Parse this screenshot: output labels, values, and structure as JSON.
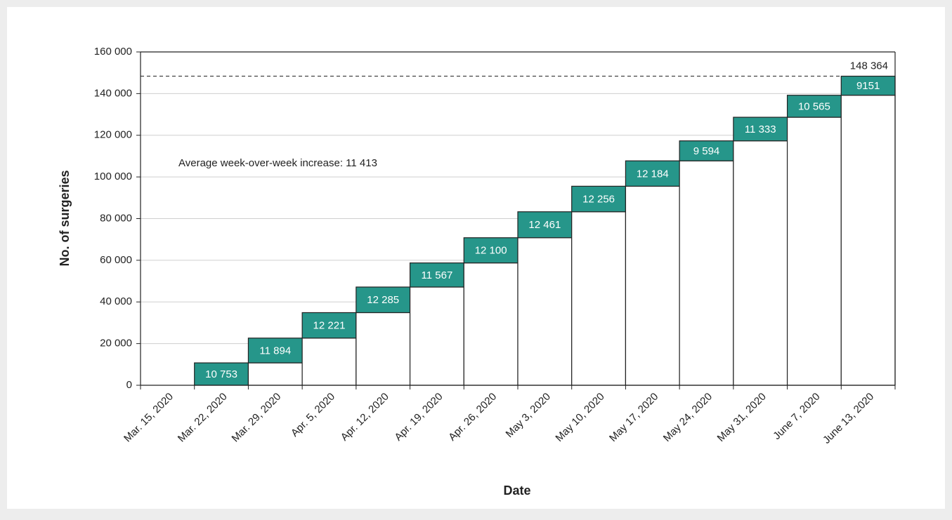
{
  "chart_data": {
    "type": "waterfall",
    "x_label": "Date",
    "y_label": "No. of surgeries",
    "categories": [
      "Mar. 15, 2020",
      "Mar. 22, 2020",
      "Mar. 29, 2020",
      "Apr. 5, 2020",
      "Apr. 12, 2020",
      "Apr. 19, 2020",
      "Apr. 26, 2020",
      "May 3, 2020",
      "May 10, 2020",
      "May 17, 2020",
      "May 24, 2020",
      "May 31, 2020",
      "June 7, 2020",
      "June 13, 2020"
    ],
    "values": [
      null,
      10753,
      11894,
      12221,
      12285,
      11567,
      12100,
      12461,
      12256,
      12184,
      9594,
      11333,
      10565,
      9151
    ],
    "value_labels": [
      null,
      "10 753",
      "11 894",
      "12 221",
      "12 285",
      "11 567",
      "12 100",
      "12 461",
      "12 256",
      "12 184",
      "9 594",
      "11 333",
      "10 565",
      "9151"
    ],
    "color": "#26968a",
    "total": {
      "value": 148364,
      "label": "148 364"
    },
    "annotation": "Average week-over-week increase: 11 413",
    "ylim": [
      0,
      160000
    ],
    "yticks": [
      0,
      {
        "value": 20000,
        "label": "20 000"
      },
      {
        "value": 40000,
        "label": "40 000"
      },
      {
        "value": 60000,
        "label": "60 000"
      },
      {
        "value": 80000,
        "label": "80 000"
      },
      {
        "value": 100000,
        "label": "100 000"
      },
      {
        "value": 120000,
        "label": "120 000"
      },
      {
        "value": 140000,
        "label": "140 000"
      },
      {
        "value": 160000,
        "label": "160 000"
      }
    ],
    "grid": true
  }
}
